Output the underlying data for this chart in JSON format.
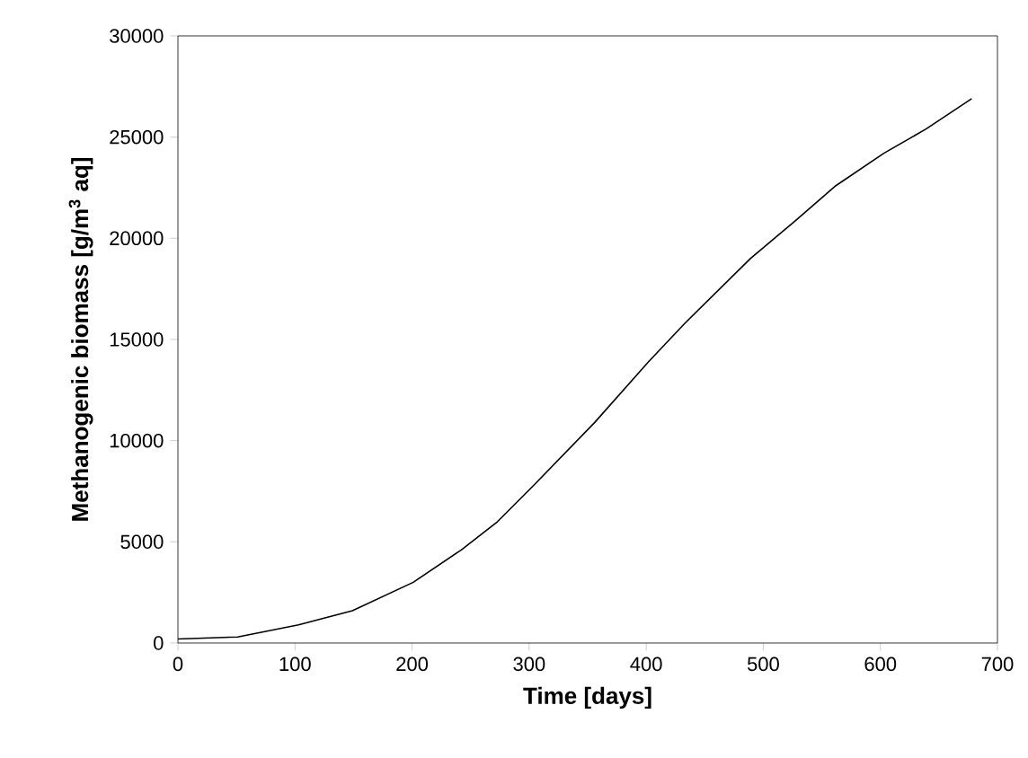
{
  "chart_data": {
    "type": "line",
    "xlabel": "Time [days]",
    "ylabel": "Methanogenic biomass [g/m$^{3}$ aq]",
    "xlim": [
      0,
      700
    ],
    "ylim": [
      0,
      30000
    ],
    "xticks": [
      0,
      100,
      200,
      300,
      400,
      500,
      600,
      700
    ],
    "yticks": [
      0,
      5000,
      10000,
      15000,
      20000,
      25000,
      30000
    ],
    "grid": false,
    "series": [
      {
        "color": "#000000",
        "x": [
          0,
          51,
          103,
          149,
          201,
          242,
          273,
          304,
          356,
          402,
          433,
          489,
          526,
          562,
          603,
          639,
          678
        ],
        "values": [
          200,
          300,
          900,
          1600,
          3000,
          4600,
          6000,
          7800,
          10900,
          13900,
          15800,
          19000,
          20800,
          22600,
          24200,
          25400,
          26900
        ]
      }
    ]
  }
}
